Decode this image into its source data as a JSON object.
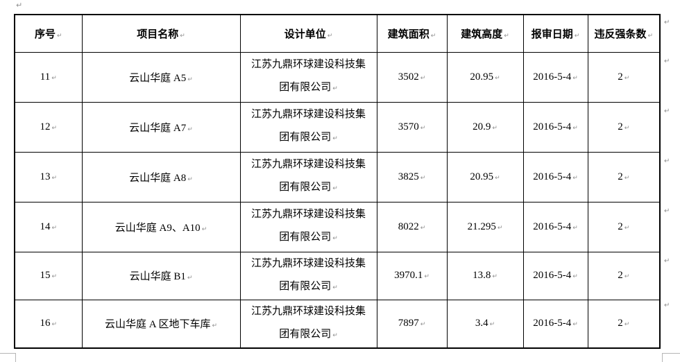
{
  "colors": {
    "table_border": "#000000",
    "text": "#000000",
    "formatting_mark": "#8f8f8f",
    "boundary_mark": "#b5b5b5"
  },
  "marks": {
    "return": "↵"
  },
  "table": {
    "headers": [
      "序号",
      "项目名称",
      "设计单位",
      "建筑面积",
      "建筑高度",
      "报审日期",
      "违反强条数"
    ],
    "rows": [
      {
        "no": "11",
        "name": "云山华庭 A5",
        "designer_l1": "江苏九鼎环球建设科技集",
        "designer_l2": "团有限公司",
        "area": "3502",
        "height": "20.95",
        "date": "2016-5-4",
        "violations": "2"
      },
      {
        "no": "12",
        "name": "云山华庭 A7",
        "designer_l1": "江苏九鼎环球建设科技集",
        "designer_l2": "团有限公司",
        "area": "3570",
        "height": "20.9",
        "date": "2016-5-4",
        "violations": "2"
      },
      {
        "no": "13",
        "name": "云山华庭 A8",
        "designer_l1": "江苏九鼎环球建设科技集",
        "designer_l2": "团有限公司",
        "area": "3825",
        "height": "20.95",
        "date": "2016-5-4",
        "violations": "2"
      },
      {
        "no": "14",
        "name": "云山华庭 A9、A10",
        "designer_l1": "江苏九鼎环球建设科技集",
        "designer_l2": "团有限公司",
        "area": "8022",
        "height": "21.295",
        "date": "2016-5-4",
        "violations": "2"
      },
      {
        "no": "15",
        "name": "云山华庭 B1",
        "designer_l1": "江苏九鼎环球建设科技集",
        "designer_l2": "团有限公司",
        "area": "3970.1",
        "height": "13.8",
        "date": "2016-5-4",
        "violations": "2"
      },
      {
        "no": "16",
        "name": "云山华庭 A 区地下车库",
        "designer_l1": "江苏九鼎环球建设科技集",
        "designer_l2": "团有限公司",
        "area": "7897",
        "height": "3.4",
        "date": "2016-5-4",
        "violations": "2"
      }
    ]
  }
}
